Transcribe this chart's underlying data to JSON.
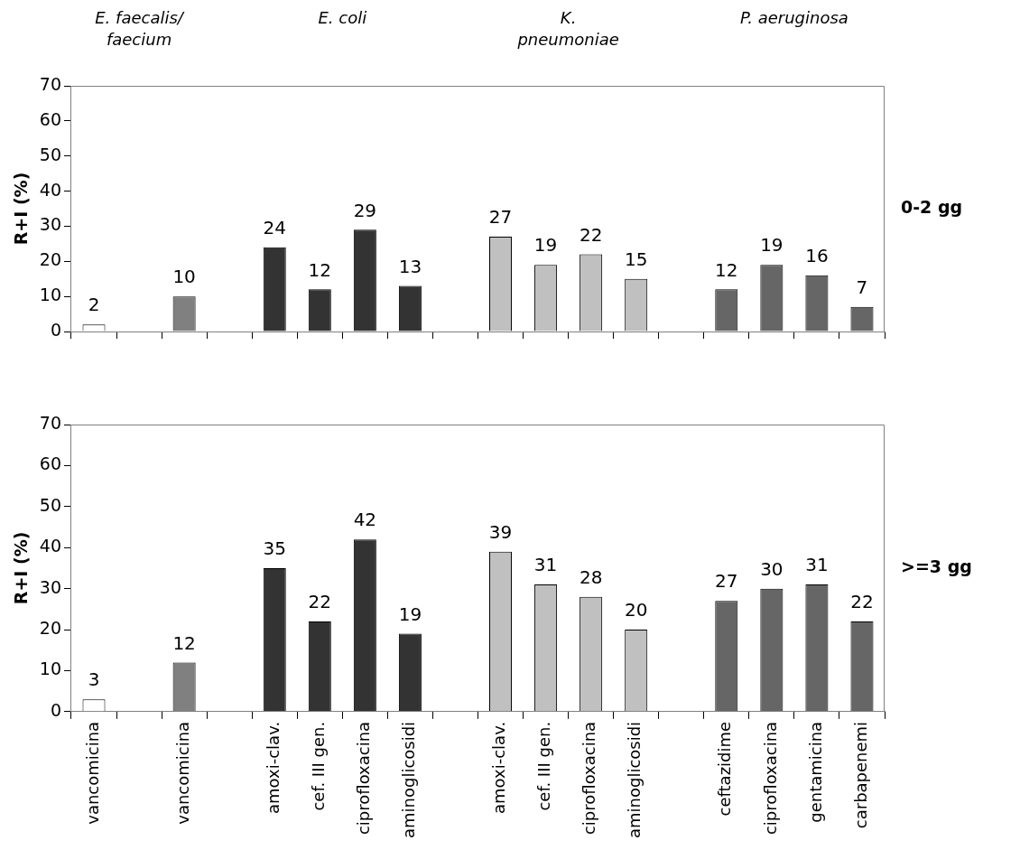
{
  "chart_data": [
    {
      "type": "bar",
      "ylabel": "R+I (%)",
      "annotations": [
        "E. faecalis/ faecium",
        "E. coli",
        "K. pneumoniae",
        "P. aeruginosa",
        "0-2 gg"
      ],
      "categories": [
        null,
        null,
        null,
        null,
        null,
        null,
        null,
        null,
        null,
        null,
        null,
        null,
        null,
        null,
        null,
        null,
        null,
        null
      ],
      "values": [
        2,
        null,
        10,
        null,
        24,
        12,
        29,
        13,
        null,
        27,
        19,
        22,
        15,
        null,
        12,
        19,
        16,
        7
      ],
      "colors": [
        "#ffffff",
        "#ffffff",
        "#808080",
        "#ffffff",
        "#333333",
        "#333333",
        "#333333",
        "#333333",
        "#ffffff",
        "#c0c0c0",
        "#c0c0c0",
        "#c0c0c0",
        "#c0c0c0",
        "#ffffff",
        "#666666",
        "#666666",
        "#666666",
        "#666666"
      ],
      "ylim": [
        0,
        70
      ],
      "yticks": [
        0,
        10,
        20,
        30,
        40,
        50,
        60,
        70
      ],
      "data_labels": true,
      "tick_labels": "y",
      "grid": false,
      "legend": false
    },
    {
      "type": "bar",
      "ylabel": "R+I (%)",
      "annotations": [
        ">=3 gg"
      ],
      "categories": [
        "vancomicina",
        null,
        "vancomicina",
        null,
        "amoxi-clav.",
        "cef. III gen.",
        "ciprofloxacina",
        "aminoglicosidi",
        null,
        "amoxi-clav.",
        "cef. III gen.",
        "ciprofloxacina",
        "aminoglicosidi",
        null,
        "ceftazidime",
        "ciprofloxacina",
        "gentamicina",
        "carbapenemi"
      ],
      "values": [
        3,
        null,
        12,
        null,
        35,
        22,
        42,
        19,
        null,
        39,
        31,
        28,
        20,
        null,
        27,
        30,
        31,
        22
      ],
      "colors": [
        "#ffffff",
        "#ffffff",
        "#808080",
        "#ffffff",
        "#333333",
        "#333333",
        "#333333",
        "#333333",
        "#ffffff",
        "#c0c0c0",
        "#c0c0c0",
        "#c0c0c0",
        "#c0c0c0",
        "#ffffff",
        "#666666",
        "#666666",
        "#666666",
        "#666666"
      ],
      "ylim": [
        0,
        70
      ],
      "yticks": [
        0,
        10,
        20,
        30,
        40,
        50,
        60,
        70
      ],
      "data_labels": true,
      "grid": false,
      "legend": false
    }
  ]
}
